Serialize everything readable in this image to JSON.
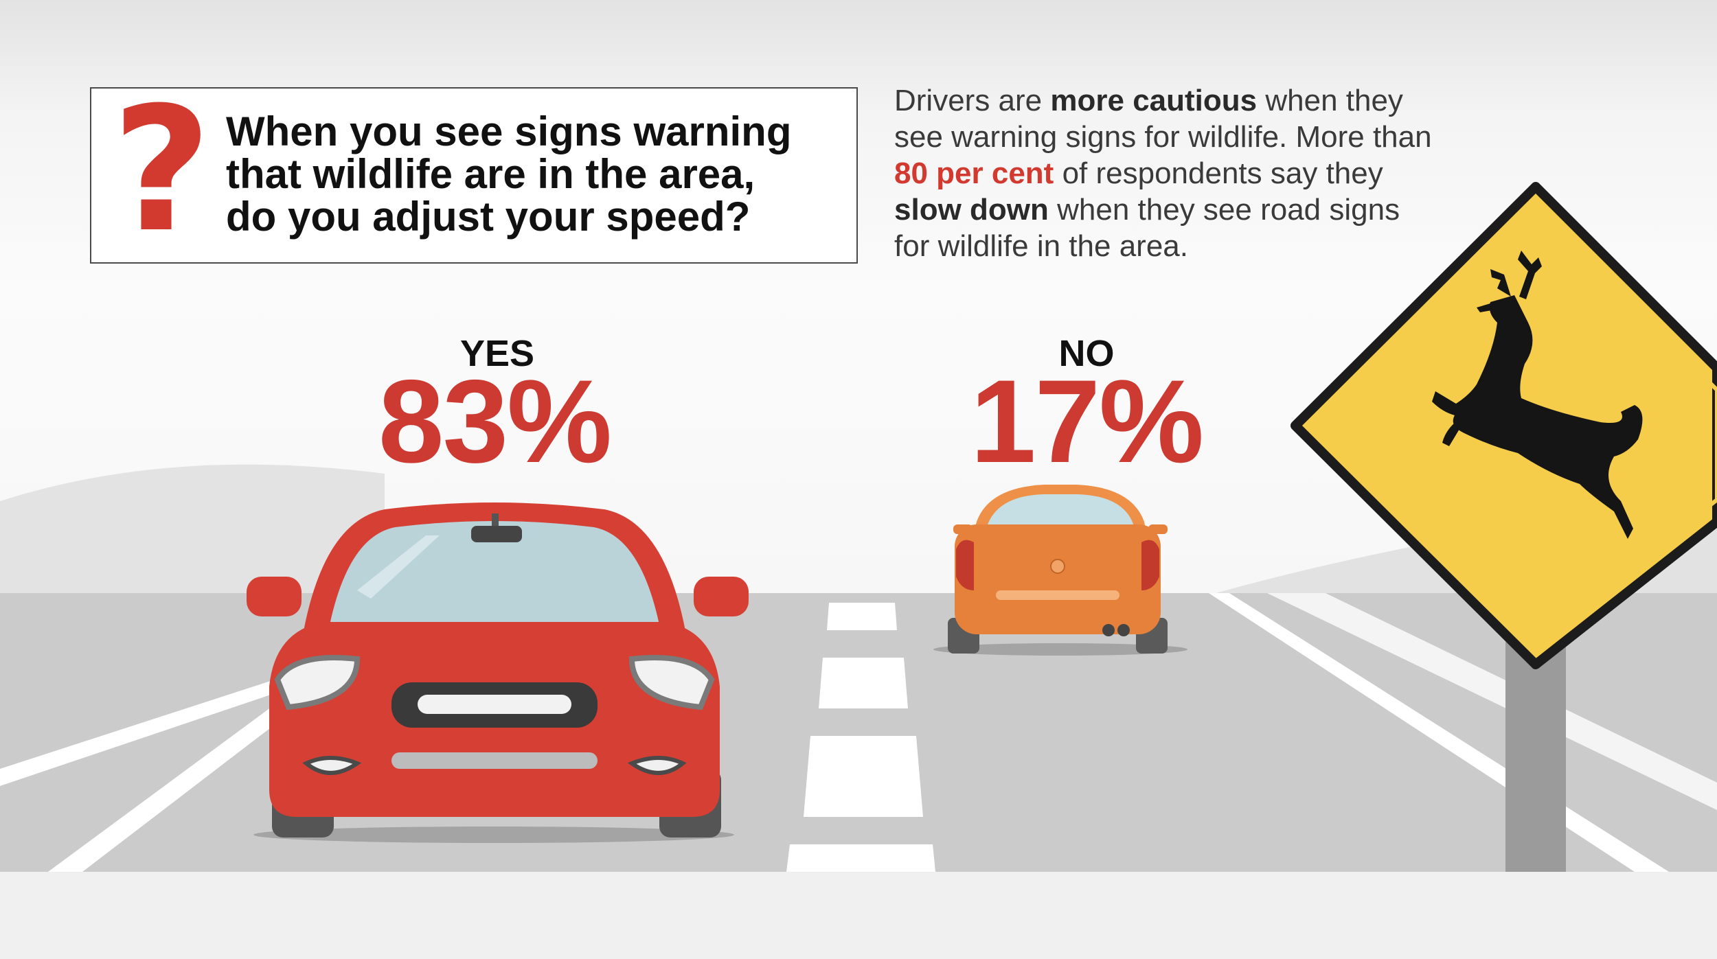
{
  "question": {
    "icon": "question-mark-icon",
    "lines": [
      "When you see signs warning",
      "that wildlife are in the area,",
      "do you adjust your speed?"
    ]
  },
  "summary": {
    "line1_pre": "Drivers are ",
    "line1_bold": "more cautious",
    "line1_post": " when they",
    "line2": "see warning signs for wildlife. More than",
    "line3_highlight": "80 per cent",
    "line3_post": " of respondents say they",
    "line4_bold": "slow down",
    "line4_post": " when they see road signs",
    "line5": "for wildlife in the area."
  },
  "results": {
    "yes": {
      "label": "YES",
      "value": "83%",
      "share": 83
    },
    "no": {
      "label": "NO",
      "value": "17%",
      "share": 17
    }
  },
  "colors": {
    "accent_red": "#d23a2f",
    "stat_red": "#cc3a32",
    "yes_car": "#d63f33",
    "no_car": "#e5813a",
    "sign_yellow": "#f5cd4a",
    "road": "#c9c9c9",
    "deer": "#151515"
  },
  "icons": [
    "red-car-icon",
    "orange-car-icon",
    "deer-crossing-sign-icon",
    "deer-icon"
  ]
}
